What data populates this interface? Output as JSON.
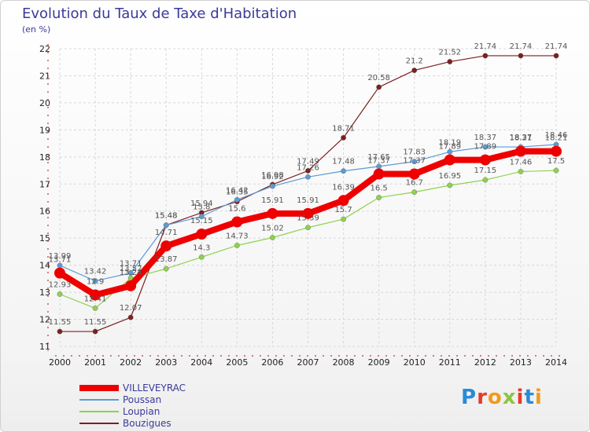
{
  "header": {
    "title": "Evolution du Taux de Taxe d'Habitation",
    "subtitle": "(en %)"
  },
  "logo": {
    "text": "Proxiti"
  },
  "chart_data": {
    "type": "line",
    "title": "Evolution du Taux de Taxe d'Habitation",
    "ylabel": "(en %)",
    "xlabel": "",
    "ylim": [
      11,
      22
    ],
    "yticks": [
      11,
      12,
      13,
      14,
      15,
      16,
      17,
      18,
      19,
      20,
      21,
      22
    ],
    "grid": true,
    "legend_position": "bottom-left",
    "categories": [
      "2000",
      "2001",
      "2002",
      "2003",
      "2004",
      "2005",
      "2006",
      "2007",
      "2008",
      "2009",
      "2010",
      "2011",
      "2012",
      "2013",
      "2014"
    ],
    "series": [
      {
        "name": "VILLEVEYRAC",
        "color": "#ee0000",
        "width": 8,
        "values": [
          13.71,
          12.9,
          13.24,
          14.71,
          15.15,
          15.6,
          15.91,
          15.91,
          16.39,
          17.37,
          17.37,
          17.89,
          17.89,
          18.21,
          18.21
        ]
      },
      {
        "name": "Poussan",
        "color": "#5b9bd5",
        "width": 1.2,
        "values": [
          13.99,
          13.42,
          13.71,
          15.48,
          15.8,
          16.42,
          16.92,
          17.26,
          17.48,
          17.65,
          17.83,
          18.19,
          18.37,
          18.37,
          18.46
        ]
      },
      {
        "name": "Loupian",
        "color": "#8fd14f",
        "width": 1.2,
        "values": [
          12.93,
          12.41,
          13.52,
          13.87,
          14.3,
          14.73,
          15.02,
          15.39,
          15.7,
          16.5,
          16.7,
          16.95,
          17.15,
          17.46,
          17.5
        ]
      },
      {
        "name": "Bouzigues",
        "color": "#7b2020",
        "width": 1.2,
        "values": [
          11.55,
          11.55,
          12.07,
          15.48,
          15.94,
          16.35,
          16.98,
          17.49,
          18.71,
          20.58,
          21.2,
          21.52,
          21.74,
          21.74,
          21.74
        ]
      }
    ],
    "data_labels": [
      [
        "13.71",
        "12.9",
        "13.24",
        "14.71",
        "15.15",
        "15.6",
        "15.91",
        "15.91",
        "16.39",
        "17.37",
        "17.37",
        "17.89",
        "17.89",
        "18.21",
        "18.21"
      ],
      [
        "13.99",
        "13.42",
        "13.71",
        "15.48",
        "15.8",
        "16.42",
        "16.92",
        "17.26",
        "17.48",
        "17.65",
        "17.83",
        "18.19",
        "18.37",
        "18.37",
        "18.46"
      ],
      [
        "12.93",
        "12.41",
        "13.52",
        "13.87",
        "14.3",
        "14.73",
        "15.02",
        "15.39",
        "15.7",
        "16.5",
        "16.7",
        "16.95",
        "17.15",
        "17.46",
        "17.5"
      ],
      [
        "11.55",
        "11.55",
        "12.07",
        "15.48",
        "15.94",
        "16.35",
        "16.98",
        "17.49",
        "18.71",
        "20.58",
        "21.2",
        "21.52",
        "21.74",
        "21.74",
        "21.74"
      ]
    ]
  }
}
